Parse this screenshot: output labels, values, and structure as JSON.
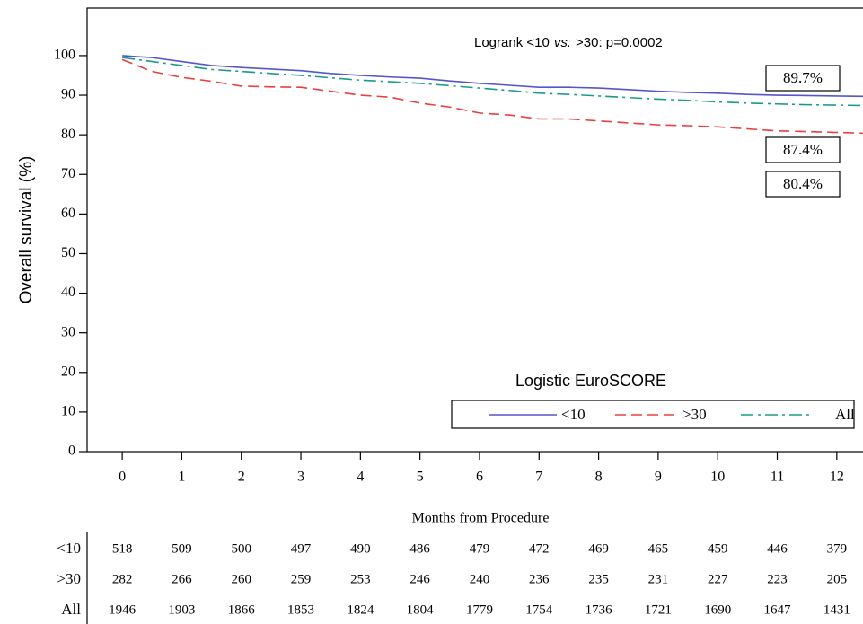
{
  "chart_data": {
    "type": "line",
    "annotation_parts": [
      "Logrank <10",
      "vs.",
      ">30: p=0.0002"
    ],
    "ylabel": "Overall survival (%)",
    "xlabel": "Months from Procedure",
    "xlim": [
      -0.59,
      12.44
    ],
    "ylim": [
      0,
      112
    ],
    "xticks": [
      0,
      1,
      2,
      3,
      4,
      5,
      6,
      7,
      8,
      9,
      10,
      11,
      12
    ],
    "yticks": [
      0,
      10,
      20,
      30,
      40,
      50,
      60,
      70,
      80,
      90,
      100
    ],
    "x": [
      0,
      0.5,
      1,
      1.5,
      2,
      2.5,
      3,
      3.5,
      4,
      4.5,
      5,
      5.5,
      6,
      6.5,
      7,
      7.5,
      8,
      8.5,
      9,
      9.5,
      10,
      10.5,
      11,
      11.5,
      12,
      12.44
    ],
    "series": [
      {
        "name": "<10",
        "color": "#5555cc",
        "dash": "none",
        "end_label": "89.7%",
        "values": [
          100,
          99.5,
          98.5,
          97.5,
          97,
          96.6,
          96.2,
          95.5,
          95,
          94.6,
          94.3,
          93.6,
          93,
          92.5,
          92,
          92,
          91.8,
          91.4,
          91,
          90.7,
          90.5,
          90.2,
          90,
          89.9,
          89.8,
          89.7
        ]
      },
      {
        "name": ">30",
        "color": "#e84040",
        "dash": "12,6",
        "end_label": "80.4%",
        "values": [
          99,
          96,
          94.5,
          93.5,
          92.3,
          92.1,
          92,
          91,
          90,
          89.5,
          88,
          87,
          85.5,
          85,
          84,
          84,
          83.5,
          83,
          82.5,
          82.3,
          82,
          81.5,
          81,
          80.8,
          80.6,
          80.4
        ]
      },
      {
        "name": "All",
        "color": "#1a9a8a",
        "dash": "14,5,3,5",
        "end_label": "87.4%",
        "values": [
          99.5,
          98.5,
          97.5,
          96.5,
          96,
          95.5,
          95,
          94.4,
          93.8,
          93.4,
          93,
          92.4,
          91.8,
          91.2,
          90.5,
          90.2,
          89.8,
          89.4,
          89,
          88.7,
          88.3,
          88,
          87.8,
          87.6,
          87.5,
          87.4
        ]
      }
    ],
    "legend": {
      "title": "Logistic EuroSCORE",
      "position": "lower right"
    },
    "risk_table": {
      "rows": [
        {
          "label": "<10",
          "values": [
            518,
            509,
            500,
            497,
            490,
            486,
            479,
            472,
            469,
            465,
            459,
            446,
            379
          ]
        },
        {
          "label": ">30",
          "values": [
            282,
            266,
            260,
            259,
            253,
            246,
            240,
            236,
            235,
            231,
            227,
            223,
            205
          ]
        },
        {
          "label": "All",
          "values": [
            1946,
            1903,
            1866,
            1853,
            1824,
            1804,
            1779,
            1754,
            1736,
            1721,
            1690,
            1647,
            1431
          ]
        }
      ]
    }
  }
}
